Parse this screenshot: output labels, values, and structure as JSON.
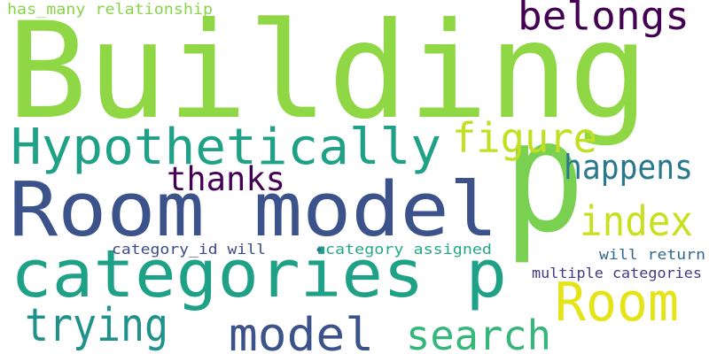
{
  "words": [
    {
      "id": "w-building",
      "text": "Building",
      "color": "#8fd744"
    },
    {
      "id": "w-p-large",
      "text": "p",
      "color": "#7ad151"
    },
    {
      "id": "w-room-model",
      "text": "Room model",
      "color": "#3b528b"
    },
    {
      "id": "w-categories-p",
      "text": "categories p",
      "color": "#1fa187"
    },
    {
      "id": "w-hypothetically",
      "text": "Hypothetically",
      "color": "#1fa187"
    },
    {
      "id": "w-belongs",
      "text": "belongs",
      "color": "#440154"
    },
    {
      "id": "w-figure",
      "text": "figure",
      "color": "#c2df23"
    },
    {
      "id": "w-happens",
      "text": "happens",
      "color": "#2a788e"
    },
    {
      "id": "w-thanks",
      "text": "thanks",
      "color": "#440154"
    },
    {
      "id": "w-index",
      "text": "index",
      "color": "#c8e020"
    },
    {
      "id": "w-room",
      "text": "Room",
      "color": "#e5e419"
    },
    {
      "id": "w-trying",
      "text": "trying",
      "color": "#21918c"
    },
    {
      "id": "w-model",
      "text": "model",
      "color": "#3b528b"
    },
    {
      "id": "w-search",
      "text": "search",
      "color": "#35b779"
    },
    {
      "id": "w-has-many",
      "text": "has_many relationship",
      "color": "#86d549"
    },
    {
      "id": "w-category-id",
      "text": "category_id will",
      "color": "#3e4a89"
    },
    {
      "id": "w-dot",
      "text": "•",
      "color": "#2a788e"
    },
    {
      "id": "w-category-assigned",
      "text": "category assigned",
      "color": "#22a884"
    },
    {
      "id": "w-will-return",
      "text": "will return",
      "color": "#31688e"
    },
    {
      "id": "w-multiple",
      "text": "multiple categories",
      "color": "#443983"
    }
  ]
}
